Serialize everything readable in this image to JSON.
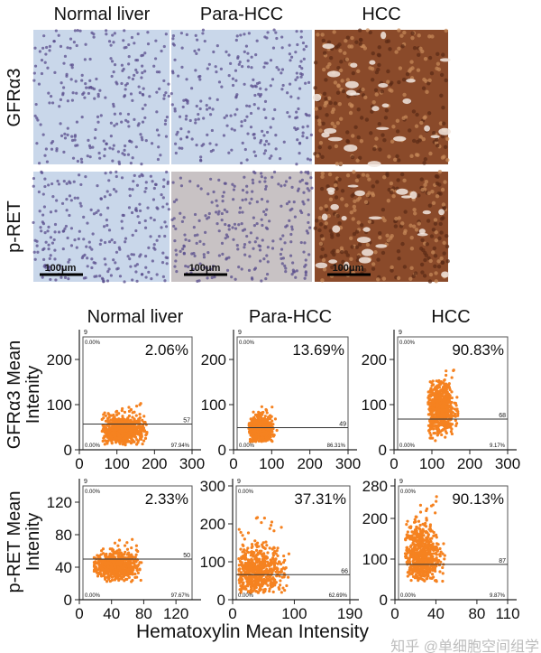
{
  "histology": {
    "columns": [
      "Normal liver",
      "Para-HCC",
      "HCC"
    ],
    "rows": [
      "GFRα3",
      "p-RET"
    ],
    "scale_bar_label": "100μm",
    "stain_colors": {
      "normal": "#c9d7ea",
      "para": "#c8c2c4",
      "hcc": "#8a4a2a",
      "nucleus": "#5a4e8c"
    }
  },
  "plots": {
    "columns": [
      "Normal liver",
      "Para-HCC",
      "HCC"
    ],
    "ylabel_row1": [
      "GFRα3 Mean",
      "Intenity"
    ],
    "ylabel_row2": [
      "p-RET Mean",
      "Intenity"
    ],
    "xlabel": "Hematoxylin  Mean Intensity",
    "gate_label": "9",
    "point_color": "#f58220"
  },
  "watermark": "知乎 @单细胞空间组学",
  "chart_data": [
    {
      "type": "scatter",
      "row": "GFRα3",
      "column": "Normal liver",
      "xlim": [
        0,
        300
      ],
      "ylim": [
        0,
        250
      ],
      "xticks": [
        "0",
        "100",
        "200",
        "300"
      ],
      "yticks": [
        "0",
        "100",
        "200"
      ],
      "threshold": 57,
      "threshold_label": "57",
      "positive_pct": "2.06%",
      "top_left": "0.00%",
      "bottom_left": "0.00%",
      "bottom_right": "97.94%",
      "point_cloud": {
        "center": [
          112,
          42
        ],
        "spread": [
          30,
          16
        ],
        "xrange": [
          60,
          180
        ],
        "yrange": [
          10,
          95
        ]
      }
    },
    {
      "type": "scatter",
      "row": "GFRα3",
      "column": "Para-HCC",
      "xlim": [
        0,
        300
      ],
      "ylim": [
        0,
        250
      ],
      "xticks": [
        "0",
        "100",
        "200",
        "300"
      ],
      "yticks": [
        "0",
        "100",
        "200"
      ],
      "threshold": 49,
      "threshold_label": "49",
      "positive_pct": "13.69%",
      "top_left": "0.00%",
      "bottom_left": "0.00%",
      "bottom_right": "86.31%",
      "point_cloud": {
        "center": [
          70,
          44
        ],
        "spread": [
          16,
          14
        ],
        "xrange": [
          40,
          115
        ],
        "yrange": [
          18,
          85
        ]
      }
    },
    {
      "type": "scatter",
      "row": "GFRα3",
      "column": "HCC",
      "xlim": [
        0,
        300
      ],
      "ylim": [
        0,
        250
      ],
      "xticks": [
        "0",
        "100",
        "200",
        "300"
      ],
      "yticks": [
        "0",
        "100",
        "200"
      ],
      "threshold": 68,
      "threshold_label": "68",
      "positive_pct": "90.83%",
      "top_left": "0.00%",
      "bottom_left": "0.00%",
      "bottom_right": "9.17%",
      "point_cloud": {
        "center": [
          122,
          92
        ],
        "spread": [
          18,
          28
        ],
        "xrange": [
          90,
          175
        ],
        "yrange": [
          20,
          155
        ]
      }
    },
    {
      "type": "scatter",
      "row": "p-RET",
      "column": "Normal liver",
      "xlim": [
        0,
        140
      ],
      "ylim": [
        0,
        140
      ],
      "xticks": [
        "0",
        "40",
        "80",
        "120"
      ],
      "yticks": [
        "0",
        "40",
        "80",
        "120"
      ],
      "threshold": 50,
      "threshold_label": "50",
      "positive_pct": "2.33%",
      "top_left": "0.00%",
      "bottom_left": "0.00%",
      "bottom_right": "97.67%",
      "point_cloud": {
        "center": [
          44,
          42
        ],
        "spread": [
          14,
          8
        ],
        "xrange": [
          18,
          78
        ],
        "yrange": [
          22,
          66
        ]
      }
    },
    {
      "type": "scatter",
      "row": "p-RET",
      "column": "Para-HCC",
      "xlim": [
        0,
        190
      ],
      "ylim": [
        0,
        300
      ],
      "xticks": [
        "0",
        "100",
        "190"
      ],
      "yticks": [
        "0",
        "100",
        "200",
        "300"
      ],
      "threshold": 66,
      "threshold_label": "66",
      "positive_pct": "37.31%",
      "top_left": "0.00%",
      "bottom_left": "0.00%",
      "bottom_right": "62.69%",
      "point_cloud": {
        "center": [
          38,
          70
        ],
        "spread": [
          22,
          38
        ],
        "xrange": [
          10,
          105
        ],
        "yrange": [
          18,
          190
        ]
      }
    },
    {
      "type": "scatter",
      "row": "p-RET",
      "column": "HCC",
      "xlim": [
        0,
        110
      ],
      "ylim": [
        0,
        280
      ],
      "xticks": [
        "0",
        "40",
        "80",
        "110"
      ],
      "yticks": [
        "0",
        "100",
        "200",
        "280"
      ],
      "threshold": 87,
      "threshold_label": "87",
      "positive_pct": "90.13%",
      "top_left": "0.00%",
      "bottom_left": "0.00%",
      "bottom_right": "9.87%",
      "point_cloud": {
        "center": [
          25,
          110
        ],
        "spread": [
          9,
          38
        ],
        "xrange": [
          10,
          50
        ],
        "yrange": [
          45,
          225
        ]
      }
    }
  ]
}
